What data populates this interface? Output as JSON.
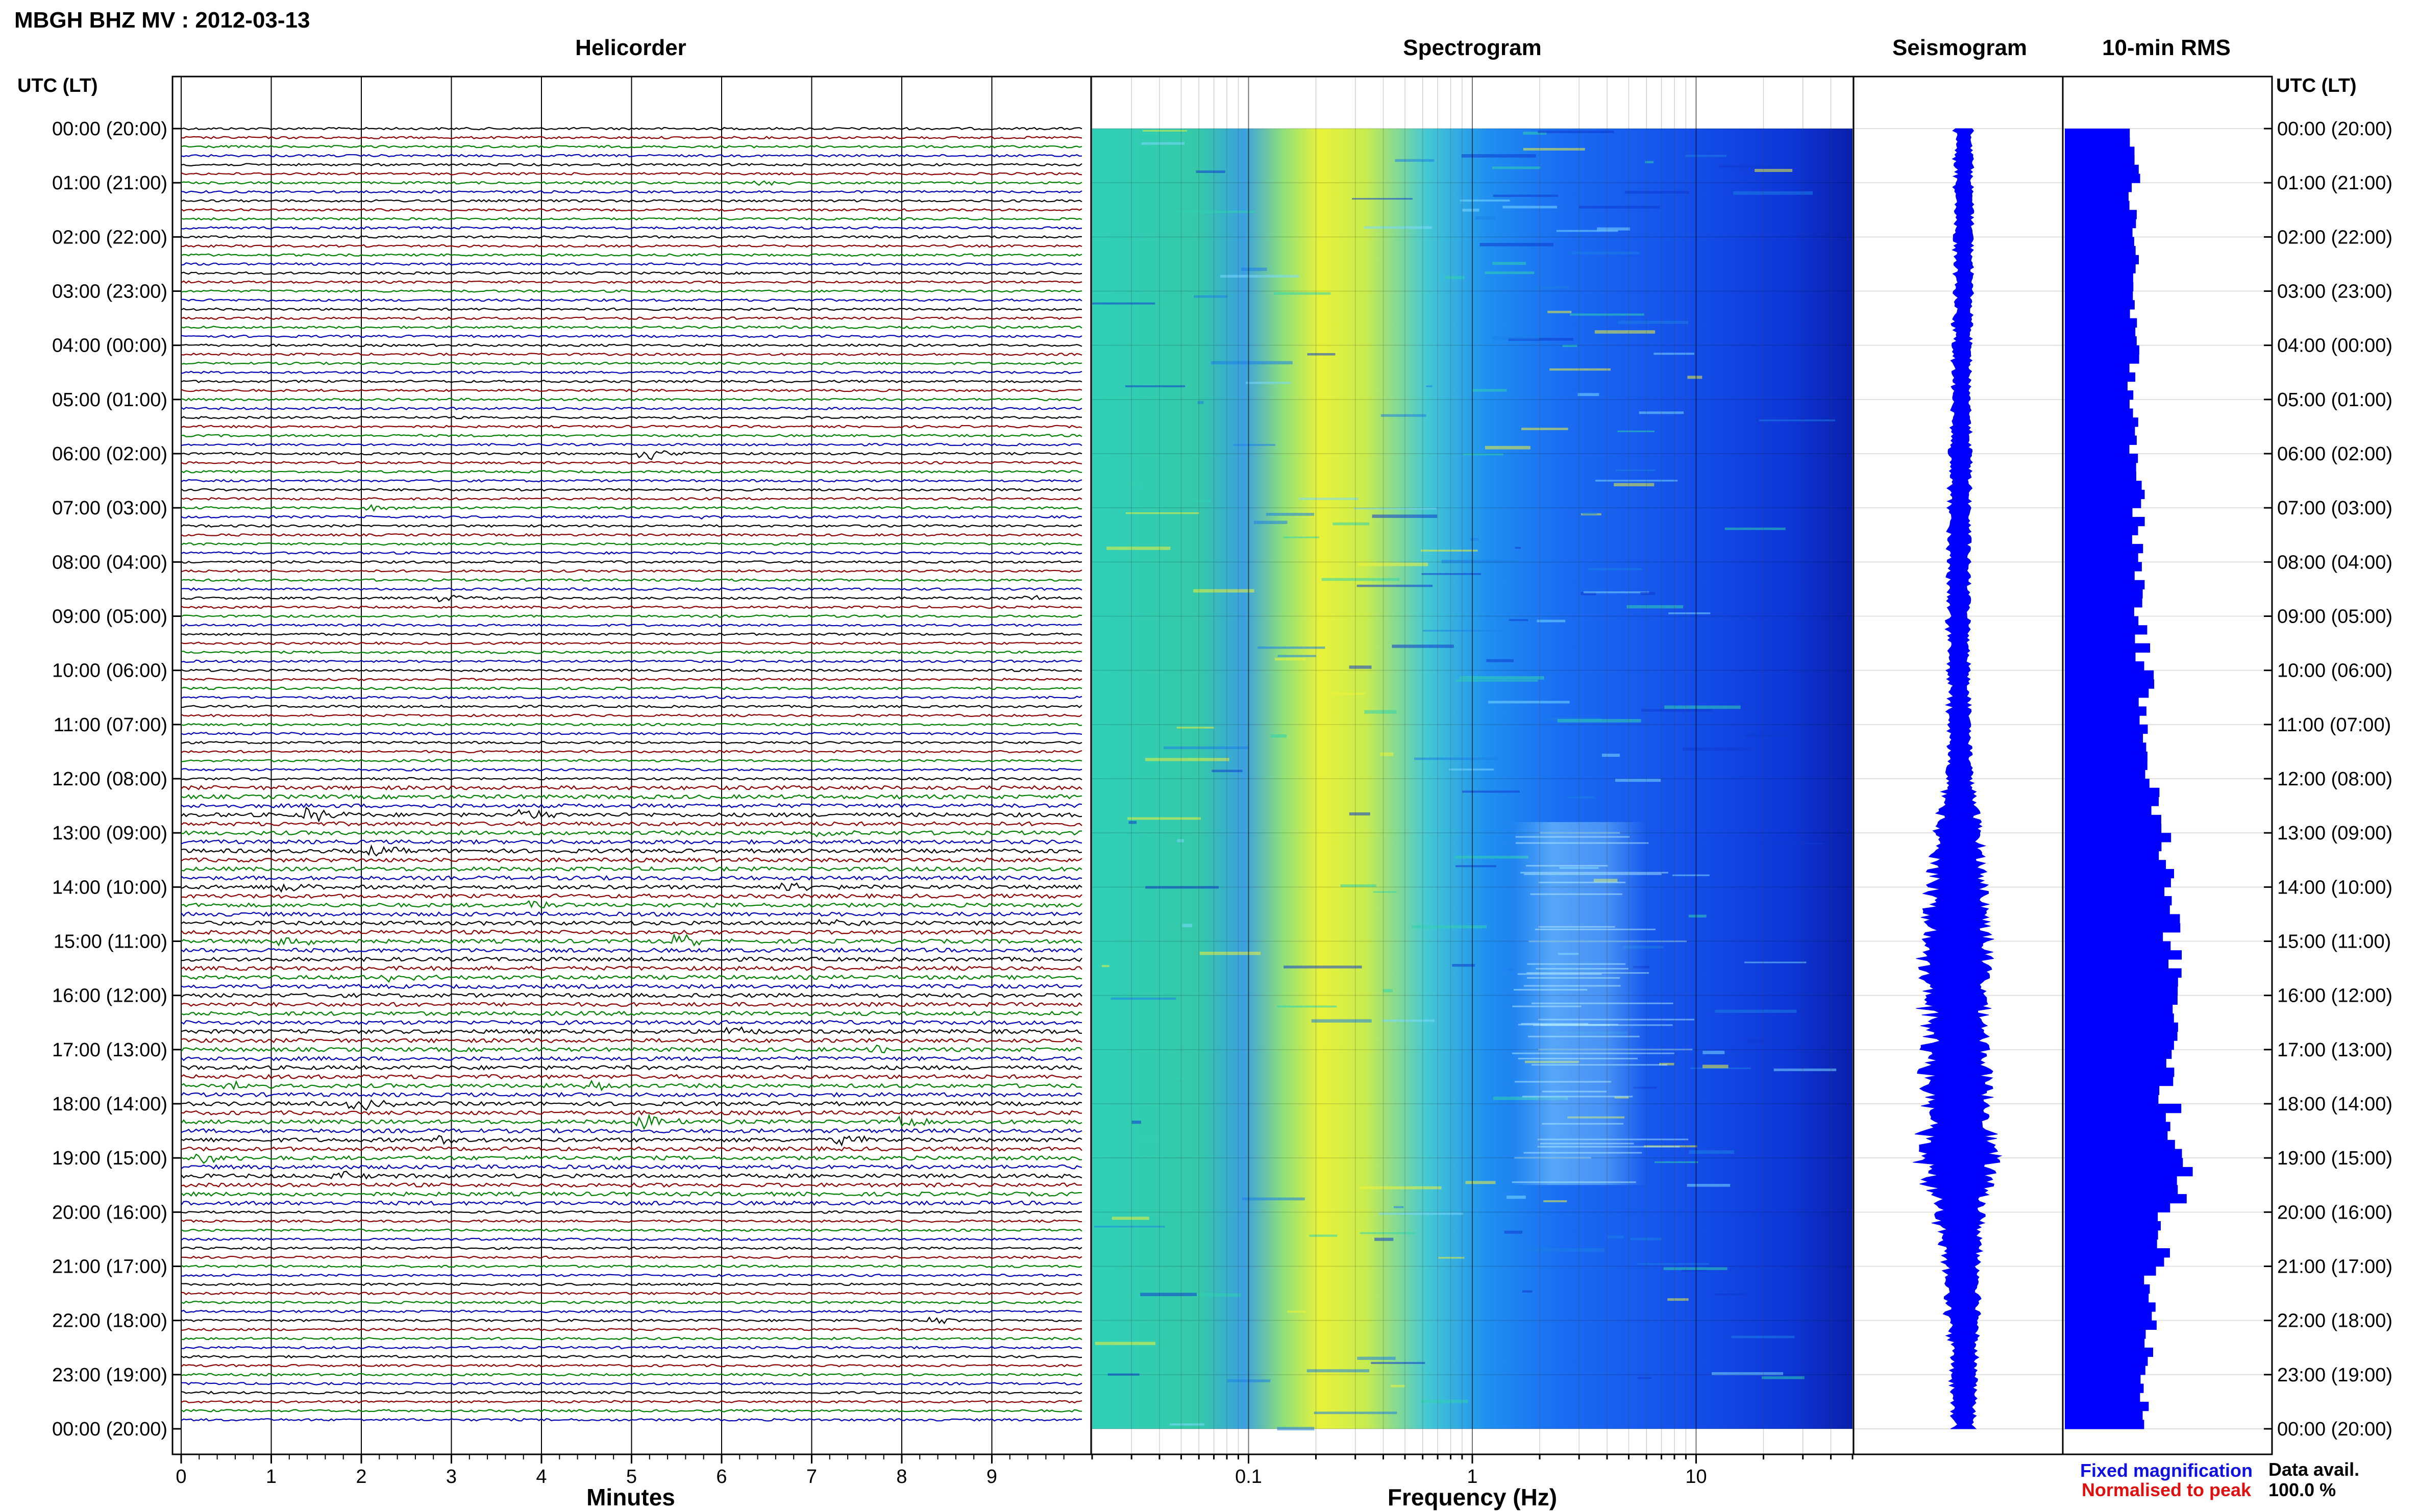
{
  "header": {
    "title": "MBGH BHZ MV : 2012-03-13"
  },
  "panels": {
    "helicorder": "Helicorder",
    "spectrogram": "Spectrogram",
    "seismogram": "Seismogram",
    "rms": "10-min RMS"
  },
  "axis_labels": {
    "time_left": "UTC (LT)",
    "time_right": "UTC (LT)",
    "minutes": "Minutes",
    "frequency": "Frequency (Hz)"
  },
  "legend": {
    "fixed": "Fixed magnification",
    "normalised": "Normalised to peak",
    "fixed_color": "#1010e0",
    "normalised_color": "#e01010"
  },
  "availability": {
    "label": "Data avail.",
    "value": "100.0 %"
  },
  "colors": {
    "trace_cycle": [
      "#000000",
      "#8b0000",
      "#008000",
      "#0000b4"
    ],
    "rms_bar": "#0000ff",
    "seismogram": "#0000ff"
  },
  "chart_data": [
    {
      "type": "line",
      "name": "helicorder",
      "x_range": [
        0,
        10
      ],
      "x_ticks": [
        "0",
        "1",
        "2",
        "3",
        "4",
        "5",
        "6",
        "7",
        "8",
        "9"
      ],
      "x_unit": "minutes",
      "rows": 144,
      "events": [
        {
          "row": 6,
          "minute": 6.5,
          "amp": 0.35
        },
        {
          "row": 36,
          "minute": 5.2,
          "amp": 0.9
        },
        {
          "row": 42,
          "minute": 2.2,
          "amp": 0.45
        },
        {
          "row": 43,
          "minute": 5.8,
          "amp": 0.3
        },
        {
          "row": 52,
          "minute": 3.0,
          "amp": 0.5
        },
        {
          "row": 52,
          "minute": 9.4,
          "amp": 0.4
        },
        {
          "row": 76,
          "minute": 1.5,
          "amp": 1.0
        },
        {
          "row": 76,
          "minute": 3.9,
          "amp": 0.8
        },
        {
          "row": 78,
          "minute": 7.1,
          "amp": 0.7
        },
        {
          "row": 80,
          "minute": 2.2,
          "amp": 0.7
        },
        {
          "row": 84,
          "minute": 1.2,
          "amp": 0.8
        },
        {
          "row": 84,
          "minute": 6.8,
          "amp": 0.7
        },
        {
          "row": 86,
          "minute": 4.0,
          "amp": 0.7
        },
        {
          "row": 88,
          "minute": 7.2,
          "amp": 0.6
        },
        {
          "row": 90,
          "minute": 1.2,
          "amp": 0.9
        },
        {
          "row": 90,
          "minute": 5.6,
          "amp": 0.8
        },
        {
          "row": 94,
          "minute": 2.4,
          "amp": 0.6
        },
        {
          "row": 100,
          "minute": 6.2,
          "amp": 0.7
        },
        {
          "row": 102,
          "minute": 7.8,
          "amp": 0.6
        },
        {
          "row": 106,
          "minute": 0.6,
          "amp": 0.9
        },
        {
          "row": 106,
          "minute": 4.6,
          "amp": 0.8
        },
        {
          "row": 108,
          "minute": 2.0,
          "amp": 0.9
        },
        {
          "row": 110,
          "minute": 5.2,
          "amp": 0.9
        },
        {
          "row": 110,
          "minute": 8.1,
          "amp": 0.7
        },
        {
          "row": 112,
          "minute": 3.0,
          "amp": 0.8
        },
        {
          "row": 112,
          "minute": 7.4,
          "amp": 0.8
        },
        {
          "row": 114,
          "minute": 0.3,
          "amp": 0.8
        },
        {
          "row": 116,
          "minute": 1.8,
          "amp": 0.6
        },
        {
          "row": 132,
          "minute": 8.4,
          "amp": 0.5
        }
      ]
    },
    {
      "type": "heatmap",
      "name": "spectrogram",
      "x_scale": "log",
      "x_range": [
        0.02,
        50
      ],
      "x_ticks": [
        "0.1",
        "1",
        "10"
      ],
      "x_unit": "Hz",
      "peak_band_hz": [
        0.2,
        0.5
      ],
      "tremor_band_hz": [
        1.5,
        6
      ],
      "tremor_hours": [
        12.8,
        19.5
      ]
    },
    {
      "type": "area",
      "name": "seismogram",
      "hours": [
        0,
        1,
        2,
        3,
        4,
        5,
        6,
        7,
        8,
        9,
        10,
        11,
        12,
        13,
        14,
        15,
        16,
        17,
        18,
        19,
        20,
        21,
        22,
        23,
        24
      ],
      "halfwidth": [
        0.1,
        0.1,
        0.1,
        0.1,
        0.1,
        0.1,
        0.12,
        0.12,
        0.12,
        0.12,
        0.12,
        0.12,
        0.14,
        0.25,
        0.32,
        0.38,
        0.34,
        0.34,
        0.36,
        0.42,
        0.26,
        0.2,
        0.18,
        0.14,
        0.12
      ],
      "center_offset": [
        0.0,
        0.0,
        0.0,
        0.0,
        -0.02,
        -0.03,
        -0.04,
        -0.05,
        -0.06,
        -0.06,
        -0.06,
        -0.05,
        -0.05,
        -0.06,
        -0.08,
        -0.09,
        -0.09,
        -0.08,
        -0.07,
        -0.06,
        -0.05,
        -0.02,
        0.0,
        0.0,
        0.0
      ]
    },
    {
      "type": "bar",
      "name": "rms",
      "bins": 144,
      "hourly_level": [
        0.34,
        0.34,
        0.33,
        0.33,
        0.34,
        0.35,
        0.36,
        0.36,
        0.37,
        0.38,
        0.4,
        0.42,
        0.44,
        0.5,
        0.52,
        0.55,
        0.52,
        0.5,
        0.54,
        0.57,
        0.48,
        0.43,
        0.41,
        0.4
      ]
    }
  ],
  "time_labels": [
    "00:00 (20:00)",
    "01:00 (21:00)",
    "02:00 (22:00)",
    "03:00 (23:00)",
    "04:00 (00:00)",
    "05:00 (01:00)",
    "06:00 (02:00)",
    "07:00 (03:00)",
    "08:00 (04:00)",
    "09:00 (05:00)",
    "10:00 (06:00)",
    "11:00 (07:00)",
    "12:00 (08:00)",
    "13:00 (09:00)",
    "14:00 (10:00)",
    "15:00 (11:00)",
    "16:00 (12:00)",
    "17:00 (13:00)",
    "18:00 (14:00)",
    "19:00 (15:00)",
    "20:00 (16:00)",
    "21:00 (17:00)",
    "22:00 (18:00)",
    "23:00 (19:00)",
    "00:00 (20:00)"
  ]
}
